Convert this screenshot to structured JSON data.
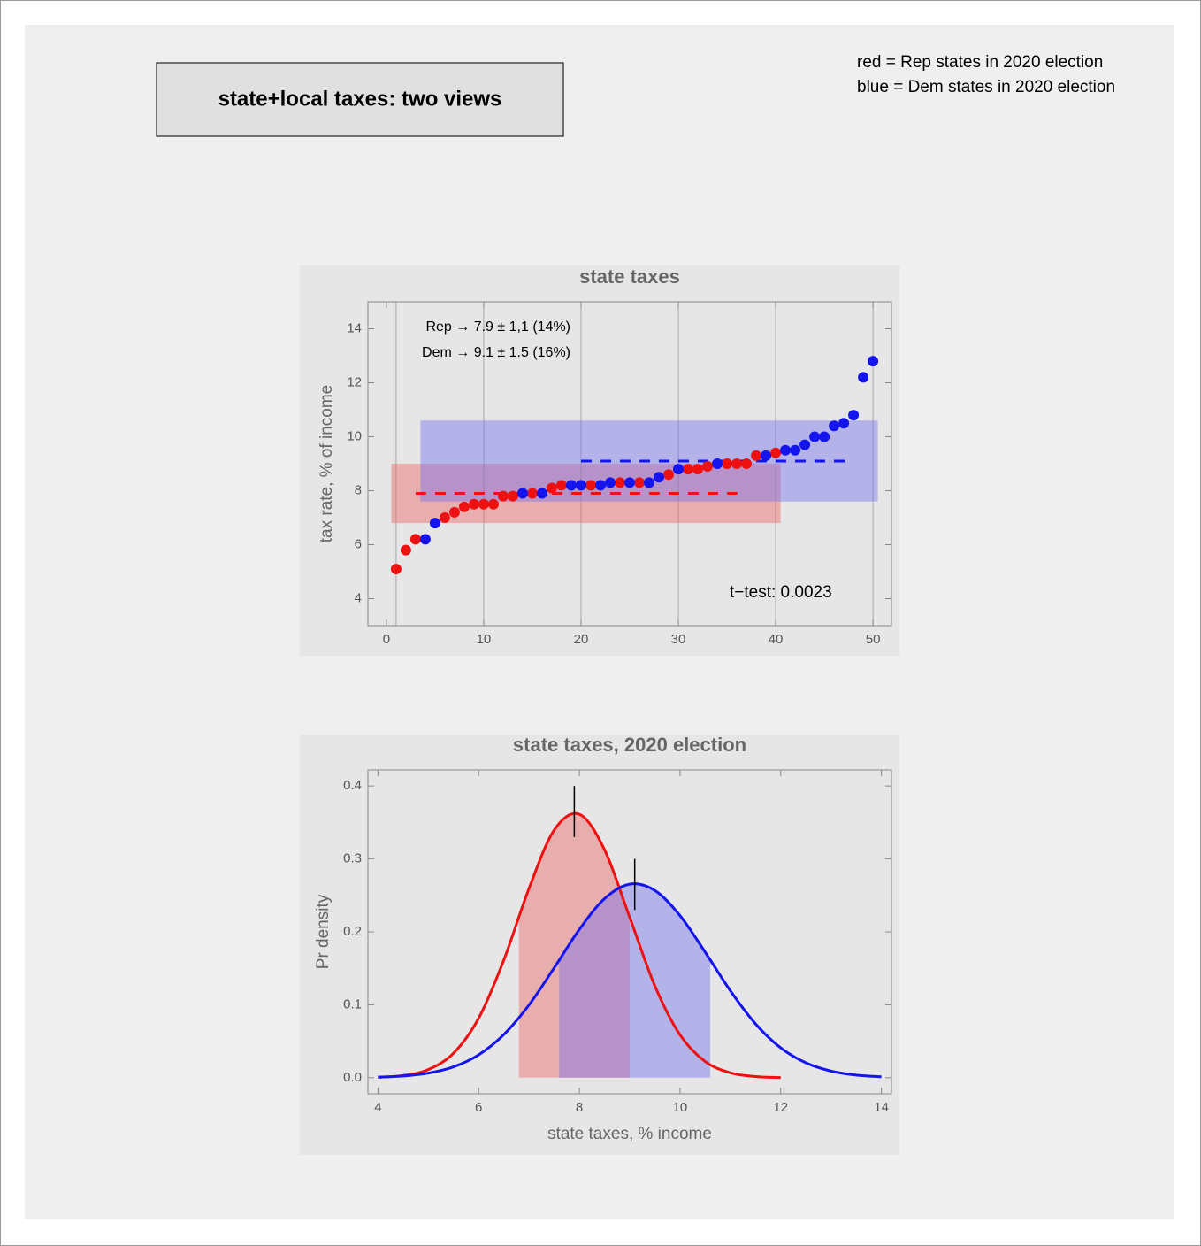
{
  "header": {
    "title": "state+local taxes: two views",
    "legend": [
      "red = Rep states in 2020 election",
      "blue = Dem states in 2020 election"
    ]
  },
  "chart_data": [
    {
      "type": "scatter",
      "title": "state taxes",
      "y_label": "tax rate, % of income",
      "xlim": [
        -1.9,
        51.9
      ],
      "ylim": [
        3.0,
        15.0
      ],
      "xticks": [
        0,
        10,
        20,
        30,
        40,
        50
      ],
      "yticks": [
        4,
        6,
        8,
        10,
        12,
        14
      ],
      "xgrid": [
        1,
        10,
        20,
        30,
        40,
        50
      ],
      "annotations": [
        "Rep → 7.9 ± 1,1 (14%)",
        "Dem → 9.1 ± 1.5 (16%)",
        "t−test:  0.0023"
      ],
      "series": [
        {
          "color": "#ee1111",
          "band_color": "rgba(235,90,90,0.4)",
          "x": [
            1,
            2,
            3,
            6,
            7,
            8,
            9,
            10,
            11,
            12,
            13,
            15,
            17,
            18,
            21,
            24,
            26,
            29,
            31,
            32,
            33,
            35,
            36,
            37,
            38,
            40
          ],
          "values": [
            5.1,
            5.8,
            6.2,
            7.0,
            7.2,
            7.4,
            7.5,
            7.5,
            7.5,
            7.8,
            7.8,
            7.9,
            8.1,
            8.2,
            8.2,
            8.3,
            8.3,
            8.6,
            8.8,
            8.8,
            8.9,
            9.0,
            9.0,
            9.0,
            9.3,
            9.4
          ],
          "band_x": [
            0.5,
            40.5
          ],
          "band_y": [
            6.8,
            9.0
          ],
          "mean": 7.9,
          "mean_x": [
            3,
            36.6
          ]
        },
        {
          "color": "#1414ee",
          "band_color": "rgba(110,110,240,0.42)",
          "x": [
            4,
            5,
            14,
            16,
            19,
            20,
            22,
            23,
            25,
            27,
            28,
            30,
            34,
            39,
            41,
            42,
            43,
            44,
            45,
            46,
            47,
            48,
            49,
            50
          ],
          "values": [
            6.2,
            6.8,
            7.9,
            7.9,
            8.2,
            8.2,
            8.2,
            8.3,
            8.3,
            8.3,
            8.5,
            8.8,
            9.0,
            9.3,
            9.5,
            9.5,
            9.7,
            10.0,
            10.0,
            10.4,
            10.5,
            10.8,
            12.2,
            12.8
          ],
          "band_x": [
            3.5,
            50.5
          ],
          "band_y": [
            7.6,
            10.6
          ],
          "mean": 9.1,
          "mean_x": [
            20,
            48
          ]
        }
      ]
    },
    {
      "type": "density",
      "title": "state taxes, 2020 election",
      "x_label": "state taxes, % income",
      "y_label": "Pr density",
      "xlim": [
        3.8,
        14.2
      ],
      "ylim": [
        -0.022,
        0.422
      ],
      "xticks": [
        4,
        6,
        8,
        10,
        12,
        14
      ],
      "yticks": [
        {
          "value": 0,
          "label": "0.0"
        },
        0.1,
        0.2,
        0.3,
        0.4
      ],
      "series": [
        {
          "color": "#ee1111",
          "band_color": "rgba(235,90,90,0.4)",
          "x": [
            4,
            4.5,
            5,
            5.5,
            6,
            6.5,
            7,
            7.5,
            8,
            8.5,
            9,
            9.5,
            10,
            10.5,
            11,
            11.5,
            12
          ],
          "values": [
            0.0007,
            0.0031,
            0.0112,
            0.0336,
            0.0816,
            0.1614,
            0.2595,
            0.3395,
            0.3612,
            0.3126,
            0.22,
            0.1259,
            0.0587,
            0.0222,
            0.0068,
            0.0017,
            0.0003
          ],
          "band": [
            6.8,
            9.0
          ],
          "mean": 7.9,
          "mean_marker_y": [
            0.33,
            0.4
          ]
        },
        {
          "color": "#1414ee",
          "band_color": "rgba(110,110,240,0.42)",
          "x": [
            4,
            4.5,
            5,
            5.5,
            6,
            6.5,
            7,
            7.5,
            8,
            8.5,
            9,
            9.5,
            10,
            10.5,
            11,
            11.5,
            12,
            12.5,
            13,
            13.5,
            14
          ],
          "values": [
            0.0008,
            0.0024,
            0.0063,
            0.0149,
            0.0314,
            0.0592,
            0.0998,
            0.1506,
            0.2033,
            0.2455,
            0.2654,
            0.2567,
            0.2222,
            0.1721,
            0.1192,
            0.0739,
            0.041,
            0.0204,
            0.0091,
            0.0036,
            0.0013
          ],
          "band": [
            7.6,
            10.6
          ],
          "mean": 9.1,
          "mean_marker_y": [
            0.23,
            0.3
          ]
        }
      ]
    }
  ]
}
